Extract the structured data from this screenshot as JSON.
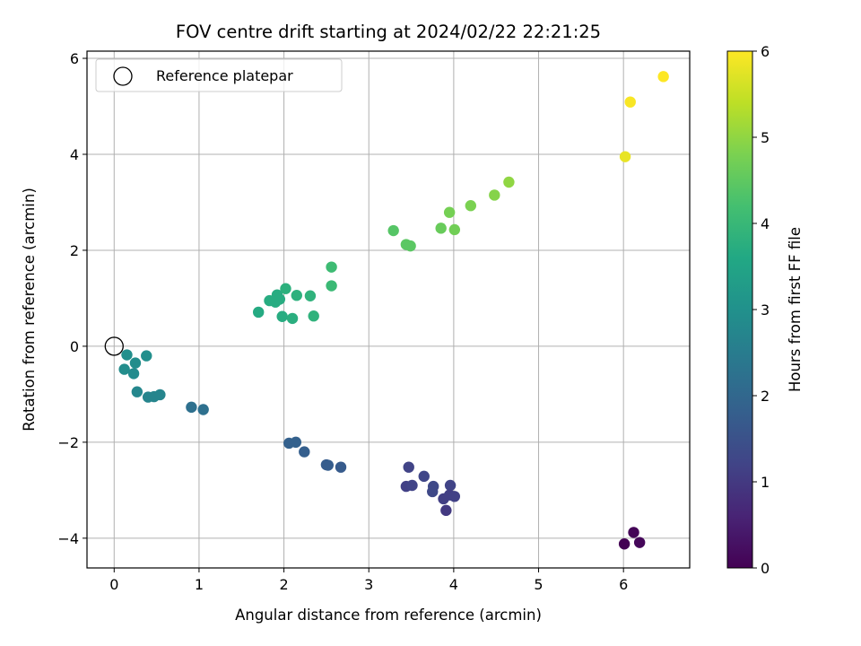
{
  "chart_data": {
    "type": "scatter",
    "title": "FOV centre drift starting at 2024/02/22 22:21:25",
    "xlabel": "Angular distance from reference (arcmin)",
    "ylabel": "Rotation from reference (arcmin)",
    "xlim": [
      -0.32,
      6.78
    ],
    "ylim": [
      -4.62,
      6.15
    ],
    "xticks": [
      0,
      1,
      2,
      3,
      4,
      5,
      6
    ],
    "yticks": [
      -4,
      -2,
      0,
      2,
      4,
      6
    ],
    "grid": true,
    "legend": {
      "placement": "top-left",
      "entries": [
        "Reference platepar"
      ]
    },
    "colorbar": {
      "label": "Hours from first FF file",
      "range": [
        0,
        6
      ],
      "ticks": [
        0,
        1,
        2,
        3,
        4,
        5,
        6
      ],
      "colormap": "viridis"
    },
    "reference_point": {
      "x": 0,
      "y": 0,
      "label": "Reference platepar"
    },
    "points": [
      {
        "x": 6.01,
        "y": -4.12,
        "t": 0.0
      },
      {
        "x": 6.12,
        "y": -3.88,
        "t": 0.05
      },
      {
        "x": 6.19,
        "y": -4.09,
        "t": 0.1
      },
      {
        "x": 3.47,
        "y": -2.52,
        "t": 1.2
      },
      {
        "x": 3.44,
        "y": -2.92,
        "t": 1.15
      },
      {
        "x": 3.51,
        "y": -2.9,
        "t": 1.2
      },
      {
        "x": 3.65,
        "y": -2.71,
        "t": 1.25
      },
      {
        "x": 3.76,
        "y": -2.92,
        "t": 1.3
      },
      {
        "x": 3.75,
        "y": -3.03,
        "t": 1.3
      },
      {
        "x": 3.88,
        "y": -3.18,
        "t": 1.1
      },
      {
        "x": 3.91,
        "y": -3.42,
        "t": 1.0
      },
      {
        "x": 3.96,
        "y": -2.9,
        "t": 1.2
      },
      {
        "x": 3.95,
        "y": -3.1,
        "t": 1.1
      },
      {
        "x": 4.01,
        "y": -3.13,
        "t": 1.15
      },
      {
        "x": 2.06,
        "y": -2.02,
        "t": 1.85
      },
      {
        "x": 2.14,
        "y": -2.0,
        "t": 1.85
      },
      {
        "x": 2.24,
        "y": -2.2,
        "t": 1.8
      },
      {
        "x": 2.5,
        "y": -2.47,
        "t": 1.75
      },
      {
        "x": 2.52,
        "y": -2.48,
        "t": 1.75
      },
      {
        "x": 2.67,
        "y": -2.52,
        "t": 1.7
      },
      {
        "x": 0.91,
        "y": -1.27,
        "t": 2.2
      },
      {
        "x": 1.05,
        "y": -1.32,
        "t": 2.2
      },
      {
        "x": 0.15,
        "y": -0.18,
        "t": 2.95
      },
      {
        "x": 0.38,
        "y": -0.2,
        "t": 2.95
      },
      {
        "x": 0.25,
        "y": -0.35,
        "t": 2.9
      },
      {
        "x": 0.12,
        "y": -0.48,
        "t": 2.9
      },
      {
        "x": 0.23,
        "y": -0.57,
        "t": 2.85
      },
      {
        "x": 0.27,
        "y": -0.95,
        "t": 2.75
      },
      {
        "x": 0.4,
        "y": -1.06,
        "t": 2.7
      },
      {
        "x": 0.47,
        "y": -1.05,
        "t": 2.7
      },
      {
        "x": 0.54,
        "y": -1.01,
        "t": 2.7
      },
      {
        "x": 1.7,
        "y": 0.71,
        "t": 3.65
      },
      {
        "x": 1.83,
        "y": 0.95,
        "t": 3.7
      },
      {
        "x": 1.92,
        "y": 1.07,
        "t": 3.7
      },
      {
        "x": 1.9,
        "y": 0.92,
        "t": 3.7
      },
      {
        "x": 1.95,
        "y": 0.98,
        "t": 3.7
      },
      {
        "x": 1.98,
        "y": 0.62,
        "t": 3.7
      },
      {
        "x": 2.02,
        "y": 1.2,
        "t": 3.8
      },
      {
        "x": 2.1,
        "y": 0.58,
        "t": 3.75
      },
      {
        "x": 2.15,
        "y": 1.06,
        "t": 3.8
      },
      {
        "x": 2.31,
        "y": 1.05,
        "t": 3.85
      },
      {
        "x": 2.35,
        "y": 0.63,
        "t": 3.85
      },
      {
        "x": 2.56,
        "y": 1.65,
        "t": 4.1
      },
      {
        "x": 2.56,
        "y": 1.26,
        "t": 4.05
      },
      {
        "x": 3.29,
        "y": 2.41,
        "t": 4.4
      },
      {
        "x": 3.44,
        "y": 2.12,
        "t": 4.45
      },
      {
        "x": 3.49,
        "y": 2.09,
        "t": 4.45
      },
      {
        "x": 3.85,
        "y": 2.46,
        "t": 4.6
      },
      {
        "x": 3.95,
        "y": 2.79,
        "t": 4.75
      },
      {
        "x": 4.01,
        "y": 2.43,
        "t": 4.7
      },
      {
        "x": 4.2,
        "y": 2.93,
        "t": 4.8
      },
      {
        "x": 4.48,
        "y": 3.15,
        "t": 4.9
      },
      {
        "x": 4.65,
        "y": 3.42,
        "t": 5.0
      },
      {
        "x": 6.02,
        "y": 3.95,
        "t": 5.8
      },
      {
        "x": 6.08,
        "y": 5.09,
        "t": 5.95
      },
      {
        "x": 6.47,
        "y": 5.62,
        "t": 6.0
      }
    ]
  }
}
